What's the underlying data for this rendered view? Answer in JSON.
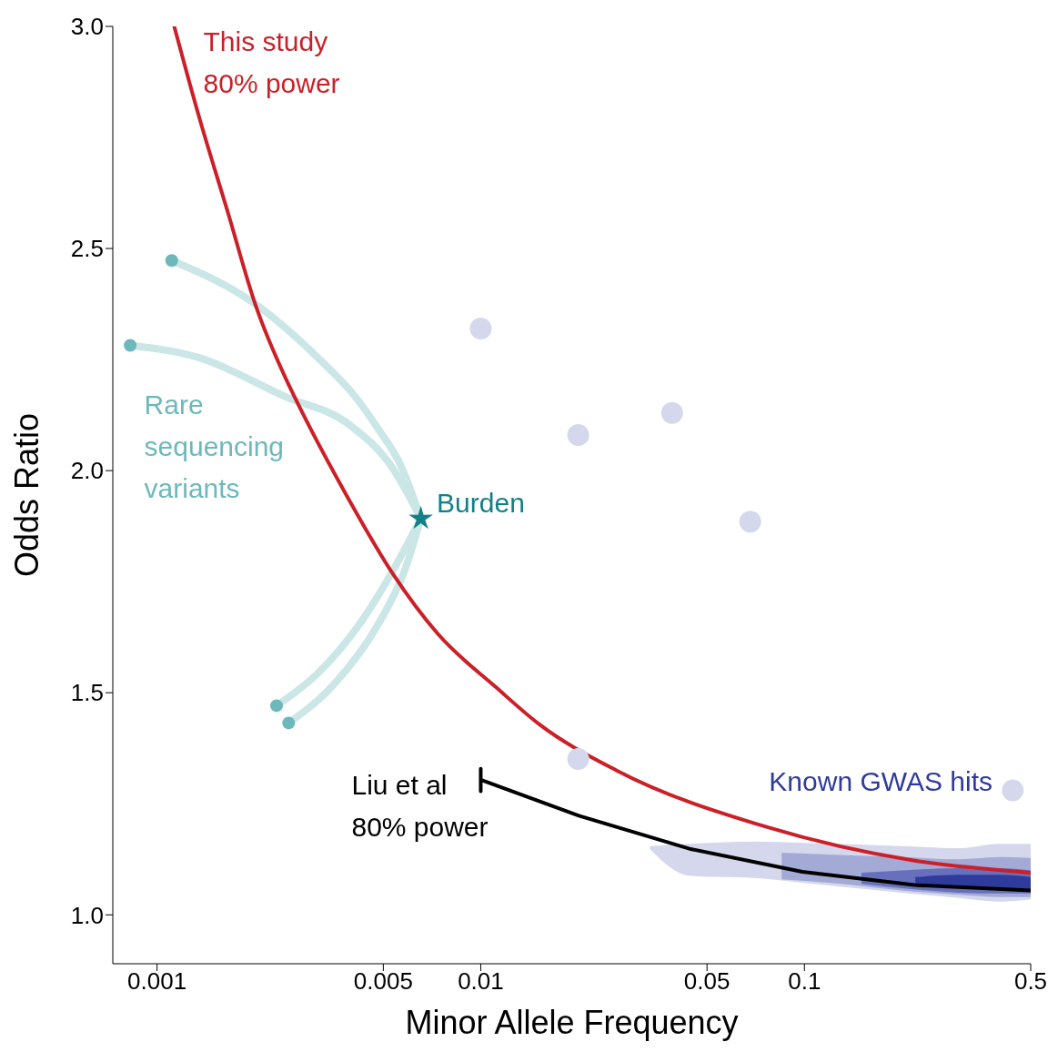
{
  "chart_data": {
    "type": "line",
    "xlabel": "Minor Allele Frequency",
    "ylabel": "Odds Ratio",
    "log": "x",
    "xlim": [
      0.00073,
      0.5
    ],
    "xticks": [
      0.001,
      0.005,
      0.01,
      0.05,
      0.1,
      0.5
    ],
    "ylim": [
      0.89,
      3
    ],
    "yticks": [
      {
        "value": 1,
        "label": "1.0"
      },
      {
        "value": 1.5,
        "label": "1.5"
      },
      {
        "value": 2,
        "label": "2.0"
      },
      {
        "value": 2.5,
        "label": "2.5"
      },
      {
        "value": 3,
        "label": "3.0"
      }
    ],
    "line_style": "solid",
    "marker": "none",
    "grid": false,
    "legend": false,
    "series": [
      {
        "type": "area",
        "color": "#d5d8ec",
        "x": [
          0.0333,
          0.044,
          0.07,
          0.1,
          0.2,
          0.3,
          0.4,
          0.5
        ],
        "values": [
          null,
          null,
          null,
          null,
          null,
          null,
          null,
          null
        ],
        "upper": [
          1.155,
          1.16,
          1.165,
          1.162,
          1.155,
          1.15,
          1.16,
          1.16
        ],
        "lower": [
          1.148,
          1.088,
          1.083,
          1.072,
          1.05,
          1.038,
          1.03,
          1.035
        ]
      },
      {
        "type": "area",
        "color": "#a3aad6",
        "x": [
          0.085,
          0.13,
          0.2,
          0.3,
          0.4,
          0.5
        ],
        "values": [
          null,
          null,
          null,
          null,
          null,
          null
        ],
        "upper": [
          1.14,
          1.135,
          1.13,
          1.125,
          1.13,
          1.128
        ],
        "lower": [
          1.08,
          1.07,
          1.055,
          1.045,
          1.04,
          1.04
        ]
      },
      {
        "type": "area",
        "color": "#6770bb",
        "x": [
          0.15,
          0.2,
          0.3,
          0.4,
          0.5
        ],
        "values": [
          null,
          null,
          null,
          null,
          null
        ],
        "upper": [
          1.095,
          1.1,
          1.105,
          1.105,
          1.1
        ],
        "lower": [
          1.07,
          1.06,
          1.05,
          1.048,
          1.048
        ]
      },
      {
        "type": "area",
        "name": "Known GWAS hits",
        "color": "#2f3b9c",
        "x": [
          0.22,
          0.3,
          0.4,
          0.5
        ],
        "values": [
          null,
          null,
          null,
          null
        ],
        "upper": [
          1.085,
          1.09,
          1.09,
          1.085
        ],
        "lower": [
          1.07,
          1.06,
          1.058,
          1.058
        ]
      },
      {
        "color": "#cbe6e6",
        "x": [
          0.00111,
          0.00201,
          0.00314,
          0.0041,
          0.00481,
          0.00564,
          0.00653
        ],
        "values": [
          2.473,
          2.375,
          2.254,
          2.166,
          2.095,
          2.014,
          1.892
        ]
      },
      {
        "color": "#cbe6e6",
        "x": [
          0.000826,
          0.00135,
          0.0025,
          0.0039,
          0.00536,
          0.00653
        ],
        "values": [
          2.282,
          2.254,
          2.166,
          2.105,
          2.004,
          1.892
        ]
      },
      {
        "color": "#cbe6e6",
        "x": [
          0.00234,
          0.00314,
          0.00432,
          0.00547,
          0.00653
        ],
        "values": [
          1.471,
          1.544,
          1.665,
          1.787,
          1.892
        ]
      },
      {
        "color": "#cbe6e6",
        "x": [
          0.00255,
          0.0035,
          0.00481,
          0.00582,
          0.00653
        ],
        "values": [
          1.432,
          1.517,
          1.653,
          1.775,
          1.892
        ]
      },
      {
        "name": "This study 80% power",
        "color": "#cc1f27",
        "x": [
          0.00113,
          0.00135,
          0.00166,
          0.00201,
          0.0025,
          0.00266,
          0.0039,
          0.00536,
          0.00736,
          0.0112,
          0.0151,
          0.0263,
          0.0755,
          0.219,
          0.5
        ],
        "values": [
          3.0,
          2.795,
          2.578,
          2.375,
          2.207,
          2.166,
          1.937,
          1.767,
          1.633,
          1.511,
          1.43,
          1.325,
          1.199,
          1.122,
          1.095
        ]
      },
      {
        "name": "Liu et al 80% power",
        "color": "#000000",
        "x": [
          0.01,
          0.01,
          0.01,
          0.0201,
          0.0446,
          0.0986,
          0.219,
          0.5
        ],
        "values": [
          1.329,
          1.278,
          1.304,
          1.223,
          1.148,
          1.097,
          1.067,
          1.055
        ]
      },
      {
        "type": "scatter",
        "name": "Rare sequencing variants",
        "color": "#6db8bb",
        "marker": "circle",
        "x": [
          0.00111,
          0.000826,
          0.00234,
          0.00255
        ],
        "values": [
          2.473,
          2.282,
          1.471,
          1.432
        ]
      },
      {
        "type": "scatter",
        "name": "Burden",
        "color": "#138086",
        "marker": "star",
        "x": [
          0.00653
        ],
        "values": [
          1.892
        ]
      },
      {
        "type": "scatter",
        "color": "#d5d8ec",
        "marker": "circle",
        "x": [
          0.01,
          0.02,
          0.039,
          0.068,
          0.02,
          0.44
        ],
        "values": [
          2.32,
          2.08,
          2.13,
          1.885,
          1.351,
          1.28
        ]
      }
    ]
  }
}
